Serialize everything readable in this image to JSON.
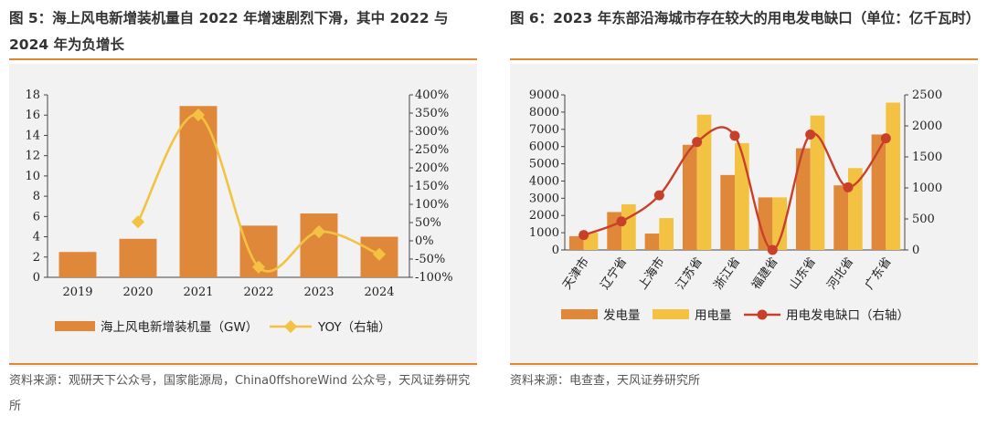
{
  "left": {
    "title": "图 5：海上风电新增装机量自 2022 年增速剧烈下滑，其中 2022 与 2024 年为负增长",
    "source": "资料来源：观研天下公众号，国家能源局，China0ffshoreWind 公众号，天风证券研究所"
  },
  "right": {
    "title": "图 6：2023 年东部沿海城市存在较大的用电发电缺口（单位：亿千瓦时）",
    "source": "资料来源：电查查，天风证券研究所"
  },
  "colors": {
    "orange": "#e0883a",
    "yellow": "#f4c242",
    "red": "#c8402a",
    "rule": "#e0882e",
    "bg": "#f2f2f2"
  },
  "chart_data": [
    {
      "type": "bar",
      "categories": [
        "2019",
        "2020",
        "2021",
        "2022",
        "2023",
        "2024"
      ],
      "series": [
        {
          "name": "海上风电新增装机量（GW）",
          "type": "bar",
          "axis": "left",
          "values": [
            2.5,
            3.8,
            16.9,
            5.1,
            6.3,
            4.0
          ]
        },
        {
          "name": "YOY（右轴）",
          "type": "line",
          "axis": "right",
          "unit": "%",
          "values": [
            null,
            52,
            345,
            -72,
            25,
            -37
          ]
        }
      ],
      "ylim_left": [
        0,
        18
      ],
      "yticks_left": [
        "0",
        "2",
        "4",
        "6",
        "8",
        "10",
        "12",
        "14",
        "16",
        "18"
      ],
      "ylim_right": [
        -100,
        400
      ],
      "yticks_right": [
        "-100%",
        "-50%",
        "0%",
        "50%",
        "100%",
        "150%",
        "200%",
        "250%",
        "300%",
        "350%",
        "400%"
      ],
      "legend": [
        "海上风电新增装机量（GW）",
        "YOY（右轴）"
      ]
    },
    {
      "type": "bar",
      "categories": [
        "天津市",
        "辽宁省",
        "上海市",
        "江苏省",
        "浙江省",
        "福建省",
        "山东省",
        "河北省",
        "广东省"
      ],
      "series": [
        {
          "name": "发电量",
          "type": "bar",
          "axis": "left",
          "values": [
            800,
            2200,
            950,
            6100,
            4350,
            3050,
            5900,
            3750,
            6700
          ]
        },
        {
          "name": "用电量",
          "type": "bar",
          "axis": "left",
          "values": [
            1000,
            2650,
            1850,
            7850,
            6200,
            3050,
            7800,
            4750,
            8550
          ]
        },
        {
          "name": "用电发电缺口（右轴）",
          "type": "line",
          "axis": "right",
          "values": [
            240,
            460,
            880,
            1740,
            1840,
            0,
            1860,
            1010,
            1800
          ]
        }
      ],
      "ylim_left": [
        0,
        9000
      ],
      "yticks_left": [
        "0",
        "1000",
        "2000",
        "3000",
        "4000",
        "5000",
        "6000",
        "7000",
        "8000",
        "9000"
      ],
      "ylim_right": [
        0,
        2500
      ],
      "yticks_right": [
        "0",
        "500",
        "1000",
        "1500",
        "2000",
        "2500"
      ],
      "legend": [
        "发电量",
        "用电量",
        "用电发电缺口（右轴）"
      ]
    }
  ]
}
